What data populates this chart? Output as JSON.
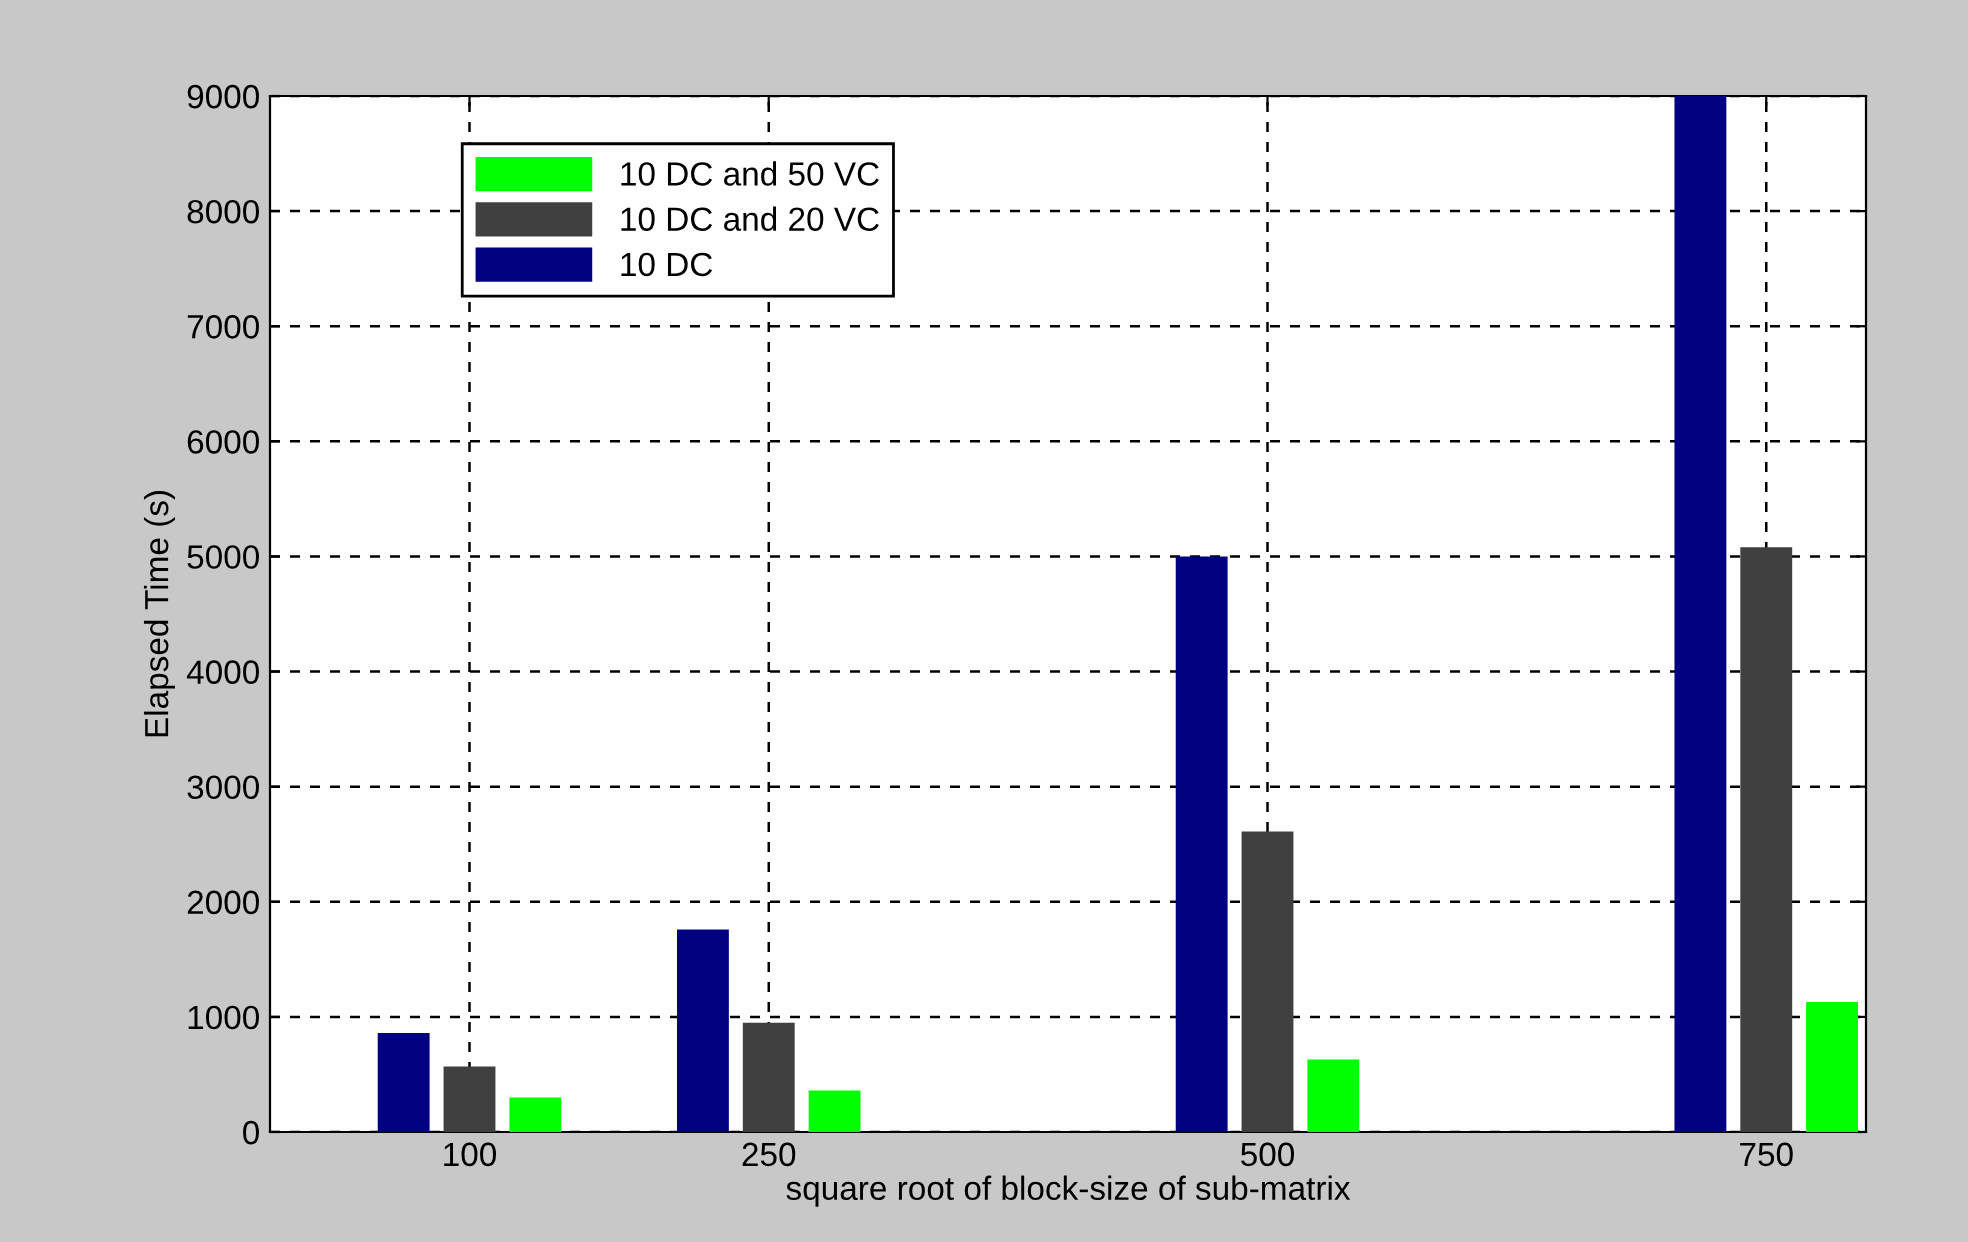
{
  "chart_data": {
    "type": "bar",
    "xlabel": "square root of block-size of sub-matrix",
    "ylabel": "Elapsed Time (s)",
    "x": [
      100,
      250,
      500,
      750
    ],
    "series": [
      {
        "name": "10 DC",
        "color": "#000080",
        "values": [
          860,
          1760,
          5000,
          9000
        ]
      },
      {
        "name": "10 DC and 20 VC",
        "color": "#404040",
        "values": [
          570,
          950,
          2610,
          5080
        ]
      },
      {
        "name": "10 DC and 50 VC",
        "color": "#00ff00",
        "values": [
          300,
          360,
          630,
          1130
        ]
      }
    ],
    "xlim": [
      0,
      800
    ],
    "xticks": [
      100,
      250,
      500,
      750
    ],
    "ylim": [
      0,
      9000
    ],
    "yticks": [
      0,
      1000,
      2000,
      3000,
      4000,
      5000,
      6000,
      7000,
      8000,
      9000
    ],
    "grid": true,
    "legend": "top left"
  }
}
